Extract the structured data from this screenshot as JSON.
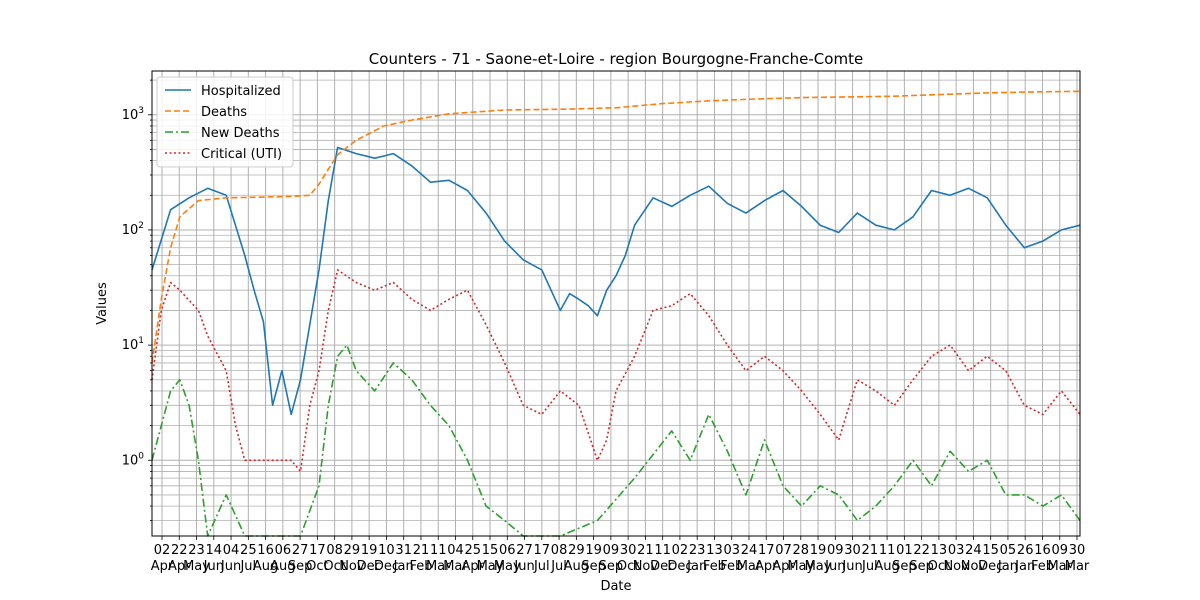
{
  "chart_data": {
    "type": "line",
    "title": "Counters - 71 - Saone-et-Loire - region Bourgogne-Franche-Comte",
    "xlabel": "Date",
    "ylabel": "Values",
    "yscale": "log",
    "ylim": [
      0.22,
      2400
    ],
    "grid": true,
    "legend_position": "top-left",
    "y_tick_labels": [
      {
        "value": 1,
        "label": "10^0"
      },
      {
        "value": 10,
        "label": "10^1"
      },
      {
        "value": 100,
        "label": "10^2"
      },
      {
        "value": 1000,
        "label": "10^3"
      }
    ],
    "x_tick_labels": [
      [
        "02",
        "Apr"
      ],
      [
        "22",
        "Apr"
      ],
      [
        "23",
        "May"
      ],
      [
        "14",
        "Jun"
      ],
      [
        "04",
        "Jun"
      ],
      [
        "25",
        "Jul"
      ],
      [
        "16",
        "Aug"
      ],
      [
        "06",
        "Aug"
      ],
      [
        "27",
        "Sep"
      ],
      [
        "17",
        "Oct"
      ],
      [
        "08",
        "Oct"
      ],
      [
        "29",
        "Nov"
      ],
      [
        "19",
        "Dec"
      ],
      [
        "10",
        "Dec"
      ],
      [
        "31",
        "Jan"
      ],
      [
        "21",
        "Feb"
      ],
      [
        "11",
        "Mar"
      ],
      [
        "04",
        "Mar"
      ],
      [
        "25",
        "Apr"
      ],
      [
        "15",
        "May"
      ],
      [
        "06",
        "May"
      ],
      [
        "27",
        "Jun"
      ],
      [
        "17",
        "Jul"
      ],
      [
        "08",
        "Jul"
      ],
      [
        "29",
        "Aug"
      ],
      [
        "19",
        "Sep"
      ],
      [
        "09",
        "Sep"
      ],
      [
        "30",
        "Oct"
      ],
      [
        "21",
        "Nov"
      ],
      [
        "11",
        "Dec"
      ],
      [
        "02",
        "Dec"
      ],
      [
        "23",
        "Jan"
      ],
      [
        "13",
        "Feb"
      ],
      [
        "03",
        "Feb"
      ],
      [
        "24",
        "Mar"
      ],
      [
        "17",
        "Apr"
      ],
      [
        "07",
        "Apr"
      ],
      [
        "28",
        "May"
      ],
      [
        "19",
        "May"
      ],
      [
        "09",
        "Jun"
      ],
      [
        "30",
        "Jun"
      ],
      [
        "21",
        "Jul"
      ],
      [
        "11",
        "Aug"
      ],
      [
        "01",
        "Sep"
      ],
      [
        "22",
        "Sep"
      ],
      [
        "13",
        "Oct"
      ],
      [
        "03",
        "Nov"
      ],
      [
        "24",
        "Nov"
      ],
      [
        "15",
        "Dec"
      ],
      [
        "05",
        "Jan"
      ],
      [
        "26",
        "Jan"
      ],
      [
        "16",
        "Feb"
      ],
      [
        "09",
        "Mar"
      ],
      [
        "30",
        "Mar"
      ]
    ],
    "series": [
      {
        "name": "Hospitalized",
        "color": "#1f77b4",
        "style": "solid",
        "points": [
          [
            0,
            45
          ],
          [
            0.02,
            150
          ],
          [
            0.04,
            190
          ],
          [
            0.06,
            230
          ],
          [
            0.08,
            200
          ],
          [
            0.1,
            60
          ],
          [
            0.11,
            30
          ],
          [
            0.12,
            16
          ],
          [
            0.13,
            3
          ],
          [
            0.14,
            6
          ],
          [
            0.15,
            2.5
          ],
          [
            0.16,
            5
          ],
          [
            0.18,
            45
          ],
          [
            0.19,
            180
          ],
          [
            0.2,
            520
          ],
          [
            0.22,
            460
          ],
          [
            0.24,
            420
          ],
          [
            0.26,
            460
          ],
          [
            0.28,
            360
          ],
          [
            0.3,
            260
          ],
          [
            0.32,
            270
          ],
          [
            0.34,
            220
          ],
          [
            0.36,
            140
          ],
          [
            0.38,
            80
          ],
          [
            0.4,
            55
          ],
          [
            0.42,
            45
          ],
          [
            0.44,
            20
          ],
          [
            0.45,
            28
          ],
          [
            0.46,
            25
          ],
          [
            0.47,
            22
          ],
          [
            0.48,
            18
          ],
          [
            0.49,
            30
          ],
          [
            0.5,
            40
          ],
          [
            0.51,
            60
          ],
          [
            0.52,
            110
          ],
          [
            0.54,
            190
          ],
          [
            0.56,
            160
          ],
          [
            0.58,
            200
          ],
          [
            0.6,
            240
          ],
          [
            0.62,
            170
          ],
          [
            0.64,
            140
          ],
          [
            0.66,
            180
          ],
          [
            0.68,
            220
          ],
          [
            0.7,
            160
          ],
          [
            0.72,
            110
          ],
          [
            0.74,
            95
          ],
          [
            0.76,
            140
          ],
          [
            0.78,
            110
          ],
          [
            0.8,
            100
          ],
          [
            0.82,
            130
          ],
          [
            0.84,
            220
          ],
          [
            0.86,
            200
          ],
          [
            0.88,
            230
          ],
          [
            0.9,
            190
          ],
          [
            0.92,
            110
          ],
          [
            0.94,
            70
          ],
          [
            0.96,
            80
          ],
          [
            0.98,
            100
          ],
          [
            1.0,
            110
          ]
        ]
      },
      {
        "name": "Deaths",
        "color": "#ff7f0e",
        "style": "dashed",
        "points": [
          [
            0,
            7
          ],
          [
            0.01,
            25
          ],
          [
            0.02,
            70
          ],
          [
            0.03,
            130
          ],
          [
            0.05,
            180
          ],
          [
            0.08,
            190
          ],
          [
            0.15,
            195
          ],
          [
            0.17,
            200
          ],
          [
            0.18,
            250
          ],
          [
            0.2,
            450
          ],
          [
            0.22,
            600
          ],
          [
            0.25,
            800
          ],
          [
            0.28,
            900
          ],
          [
            0.32,
            1020
          ],
          [
            0.38,
            1100
          ],
          [
            0.45,
            1120
          ],
          [
            0.5,
            1150
          ],
          [
            0.55,
            1250
          ],
          [
            0.6,
            1320
          ],
          [
            0.65,
            1370
          ],
          [
            0.7,
            1410
          ],
          [
            0.75,
            1430
          ],
          [
            0.8,
            1450
          ],
          [
            0.85,
            1500
          ],
          [
            0.9,
            1550
          ],
          [
            0.95,
            1580
          ],
          [
            1.0,
            1600
          ]
        ]
      },
      {
        "name": "New Deaths",
        "color": "#2ca02c",
        "style": "dashdot",
        "points": [
          [
            0,
            1
          ],
          [
            0.02,
            4
          ],
          [
            0.03,
            5
          ],
          [
            0.04,
            3
          ],
          [
            0.05,
            1
          ],
          [
            0.06,
            0.22
          ],
          [
            0.08,
            0.5
          ],
          [
            0.1,
            0.22
          ],
          [
            0.14,
            0.22
          ],
          [
            0.16,
            0.22
          ],
          [
            0.18,
            0.6
          ],
          [
            0.19,
            3
          ],
          [
            0.2,
            8
          ],
          [
            0.21,
            10
          ],
          [
            0.22,
            6
          ],
          [
            0.24,
            4
          ],
          [
            0.26,
            7
          ],
          [
            0.28,
            5
          ],
          [
            0.3,
            3
          ],
          [
            0.32,
            2
          ],
          [
            0.34,
            1
          ],
          [
            0.36,
            0.4
          ],
          [
            0.38,
            0.3
          ],
          [
            0.4,
            0.22
          ],
          [
            0.44,
            0.22
          ],
          [
            0.48,
            0.3
          ],
          [
            0.52,
            0.7
          ],
          [
            0.56,
            1.8
          ],
          [
            0.58,
            1
          ],
          [
            0.6,
            2.5
          ],
          [
            0.62,
            1.2
          ],
          [
            0.64,
            0.5
          ],
          [
            0.66,
            1.5
          ],
          [
            0.68,
            0.6
          ],
          [
            0.7,
            0.4
          ],
          [
            0.72,
            0.6
          ],
          [
            0.74,
            0.5
          ],
          [
            0.76,
            0.3
          ],
          [
            0.78,
            0.4
          ],
          [
            0.8,
            0.6
          ],
          [
            0.82,
            1
          ],
          [
            0.84,
            0.6
          ],
          [
            0.86,
            1.2
          ],
          [
            0.88,
            0.8
          ],
          [
            0.9,
            1
          ],
          [
            0.92,
            0.5
          ],
          [
            0.94,
            0.5
          ],
          [
            0.96,
            0.4
          ],
          [
            0.98,
            0.5
          ],
          [
            1.0,
            0.3
          ]
        ]
      },
      {
        "name": "Critical (UTI)",
        "color": "#d62728",
        "style": "dotted",
        "points": [
          [
            0,
            5
          ],
          [
            0.01,
            20
          ],
          [
            0.02,
            35
          ],
          [
            0.03,
            30
          ],
          [
            0.05,
            20
          ],
          [
            0.06,
            12
          ],
          [
            0.08,
            6
          ],
          [
            0.09,
            2
          ],
          [
            0.1,
            1
          ],
          [
            0.15,
            1
          ],
          [
            0.16,
            0.8
          ],
          [
            0.17,
            3
          ],
          [
            0.18,
            6
          ],
          [
            0.19,
            20
          ],
          [
            0.2,
            45
          ],
          [
            0.22,
            35
          ],
          [
            0.24,
            30
          ],
          [
            0.26,
            35
          ],
          [
            0.28,
            25
          ],
          [
            0.3,
            20
          ],
          [
            0.32,
            25
          ],
          [
            0.34,
            30
          ],
          [
            0.36,
            15
          ],
          [
            0.38,
            7
          ],
          [
            0.4,
            3
          ],
          [
            0.42,
            2.5
          ],
          [
            0.44,
            4
          ],
          [
            0.46,
            3
          ],
          [
            0.48,
            1
          ],
          [
            0.49,
            1.5
          ],
          [
            0.5,
            4
          ],
          [
            0.52,
            8
          ],
          [
            0.54,
            20
          ],
          [
            0.56,
            22
          ],
          [
            0.58,
            28
          ],
          [
            0.6,
            18
          ],
          [
            0.62,
            10
          ],
          [
            0.64,
            6
          ],
          [
            0.66,
            8
          ],
          [
            0.68,
            6
          ],
          [
            0.7,
            4
          ],
          [
            0.72,
            2.5
          ],
          [
            0.74,
            1.5
          ],
          [
            0.76,
            5
          ],
          [
            0.78,
            4
          ],
          [
            0.8,
            3
          ],
          [
            0.82,
            5
          ],
          [
            0.84,
            8
          ],
          [
            0.86,
            10
          ],
          [
            0.88,
            6
          ],
          [
            0.9,
            8
          ],
          [
            0.92,
            6
          ],
          [
            0.94,
            3
          ],
          [
            0.96,
            2.5
          ],
          [
            0.98,
            4
          ],
          [
            1.0,
            2.5
          ]
        ]
      }
    ]
  }
}
